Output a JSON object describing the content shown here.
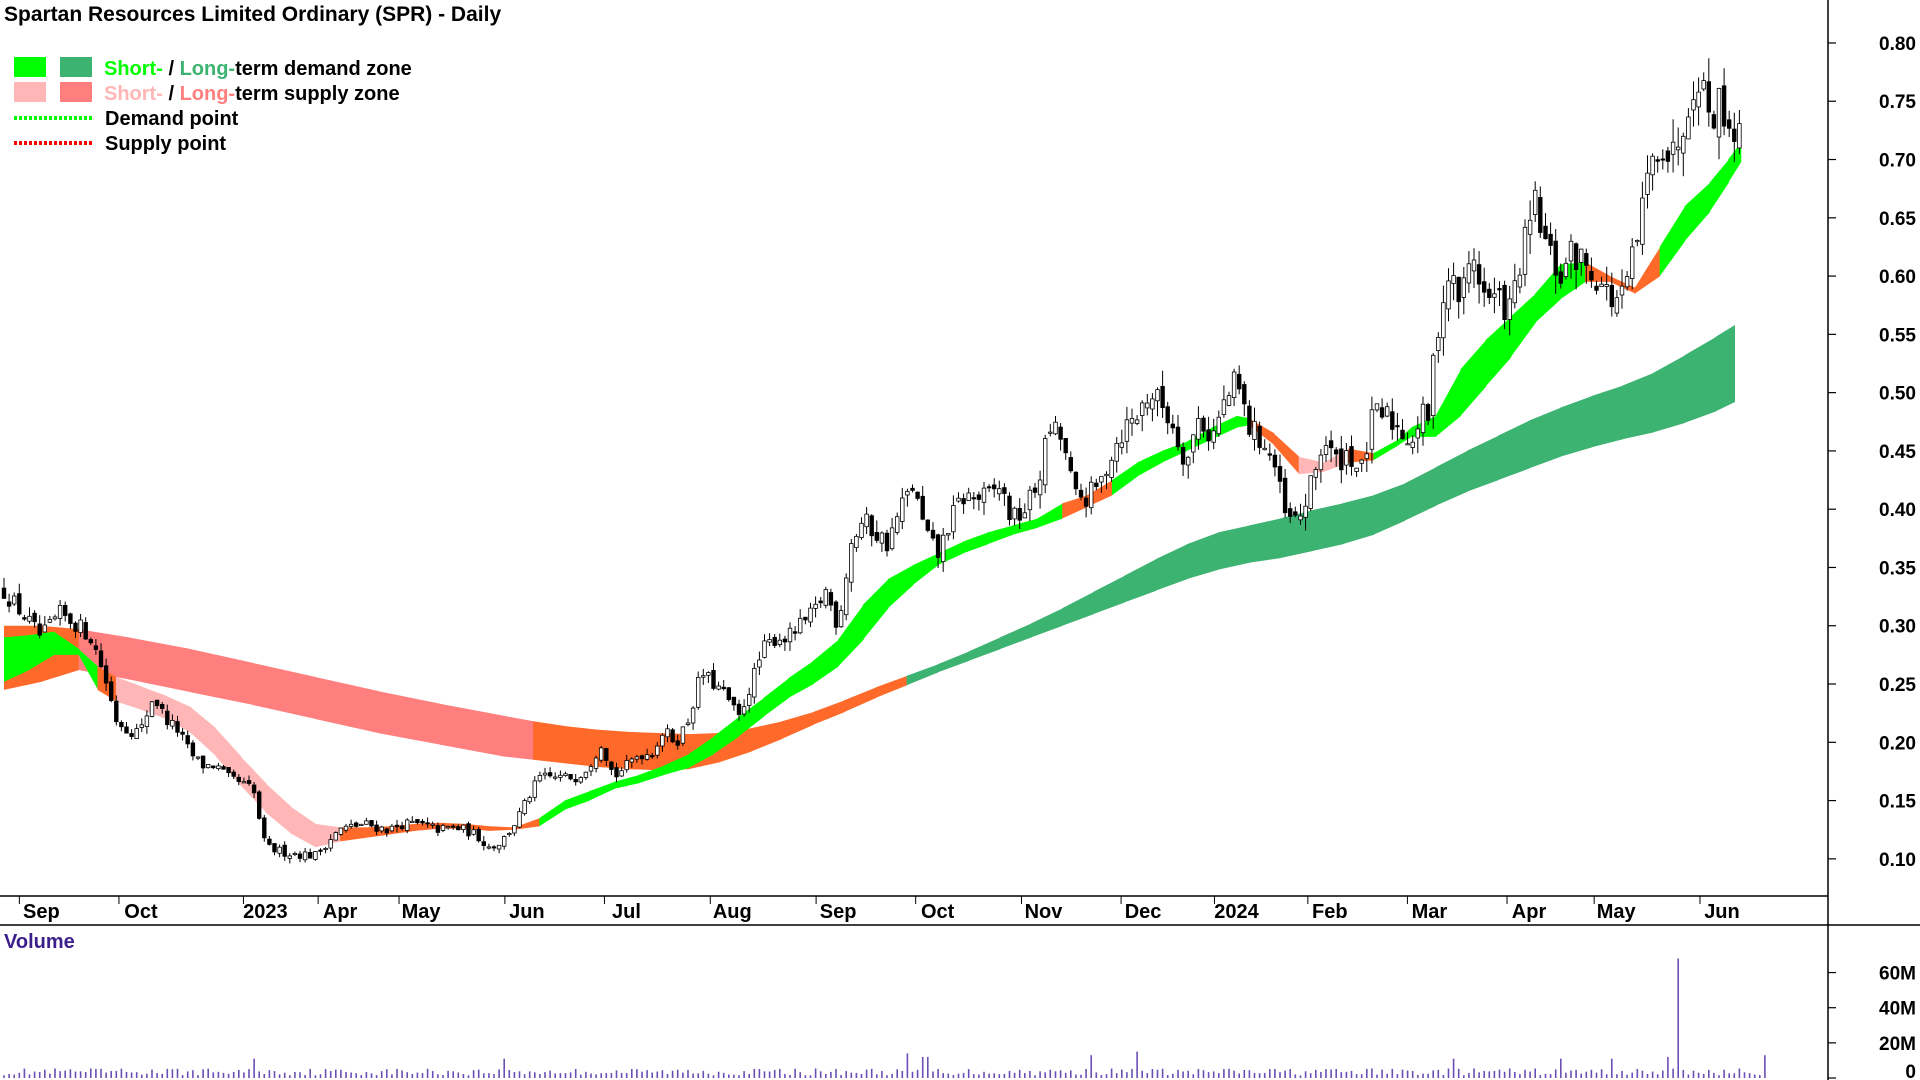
{
  "chart_data": {
    "type": "candlestick",
    "title": "Spartan Resources Limited Ordinary (SPR) - Daily",
    "legend": {
      "placement": "top-left",
      "items": [
        {
          "kind": "zone",
          "swatch_colors": [
            "#00ff00",
            "#3cb371"
          ],
          "prefix": "Short-",
          "prefix_color": "#00ff00",
          "sep": " / ",
          "mid": "Long-",
          "mid_color": "#3cb371",
          "rest": "term demand zone"
        },
        {
          "kind": "zone",
          "swatch_colors": [
            "#ffb6b6",
            "#ff7f7f"
          ],
          "prefix": "Short-",
          "prefix_color": "#ffb6b6",
          "sep": " / ",
          "mid": "Long-",
          "mid_color": "#ff7f7f",
          "rest": "term supply zone"
        },
        {
          "kind": "point",
          "color": "#00ff00",
          "label": "Demand point"
        },
        {
          "kind": "point",
          "color": "#ff0000",
          "label": "Supply point"
        }
      ]
    },
    "price_axis": {
      "ylim": [
        0.075,
        0.83
      ],
      "ticks": [
        "0.10",
        "0.15",
        "0.20",
        "0.25",
        "0.30",
        "0.35",
        "0.40",
        "0.45",
        "0.50",
        "0.55",
        "0.60",
        "0.65",
        "0.70",
        "0.75",
        "0.80"
      ],
      "position": "right"
    },
    "x_axis": {
      "range": [
        0,
        285
      ],
      "labels": [
        {
          "label": "Sep",
          "pos": 6
        },
        {
          "label": "Oct",
          "pos": 22
        },
        {
          "label": "2023",
          "pos": 42
        },
        {
          "label": "Apr",
          "pos": 54
        },
        {
          "label": "May",
          "pos": 67
        },
        {
          "label": "Jun",
          "pos": 84
        },
        {
          "label": "Jul",
          "pos": 100
        },
        {
          "label": "Aug",
          "pos": 117
        },
        {
          "label": "Sep",
          "pos": 134
        },
        {
          "label": "Oct",
          "pos": 150
        },
        {
          "label": "Nov",
          "pos": 167
        },
        {
          "label": "Dec",
          "pos": 183
        },
        {
          "label": "2024",
          "pos": 198
        },
        {
          "label": "Feb",
          "pos": 213
        },
        {
          "label": "Mar",
          "pos": 229
        },
        {
          "label": "Apr",
          "pos": 245
        },
        {
          "label": "May",
          "pos": 259
        },
        {
          "label": "Jun",
          "pos": 276
        }
      ]
    },
    "zone_colors": {
      "short_demand": "#00ff00",
      "long_demand": "#3cb371",
      "short_supply": "#ffb6b6",
      "long_supply": "#ff7f7f",
      "overlap": "#ff6a2a"
    },
    "long_term_zone": {
      "x": [
        0,
        6,
        12,
        20,
        30,
        40,
        50,
        60,
        70,
        80,
        85,
        90,
        95,
        100,
        105,
        110,
        115,
        120,
        125,
        130,
        135,
        140,
        145,
        150,
        155,
        160,
        165,
        170,
        175,
        180,
        185,
        190,
        195,
        200,
        205,
        210,
        215,
        220,
        225,
        230,
        235,
        240,
        245,
        250,
        255,
        260,
        265,
        270,
        275,
        278
      ],
      "top": [
        0.3,
        0.3,
        0.297,
        0.29,
        0.28,
        0.268,
        0.256,
        0.244,
        0.233,
        0.223,
        0.218,
        0.214,
        0.211,
        0.209,
        0.208,
        0.207,
        0.208,
        0.212,
        0.218,
        0.226,
        0.236,
        0.247,
        0.257,
        0.267,
        0.278,
        0.29,
        0.302,
        0.315,
        0.329,
        0.343,
        0.357,
        0.37,
        0.38,
        0.386,
        0.392,
        0.399,
        0.405,
        0.412,
        0.422,
        0.436,
        0.45,
        0.463,
        0.476,
        0.487,
        0.497,
        0.506,
        0.517,
        0.532,
        0.548,
        0.558
      ],
      "bottom": [
        0.245,
        0.252,
        0.262,
        0.254,
        0.243,
        0.232,
        0.22,
        0.208,
        0.198,
        0.188,
        0.185,
        0.182,
        0.179,
        0.177,
        0.176,
        0.177,
        0.183,
        0.192,
        0.203,
        0.215,
        0.226,
        0.238,
        0.249,
        0.26,
        0.27,
        0.28,
        0.29,
        0.3,
        0.31,
        0.32,
        0.33,
        0.34,
        0.348,
        0.354,
        0.358,
        0.364,
        0.37,
        0.378,
        0.39,
        0.403,
        0.415,
        0.425,
        0.435,
        0.445,
        0.453,
        0.46,
        0.466,
        0.474,
        0.484,
        0.492
      ],
      "colors": [
        "overlap",
        "overlap",
        "long_supply",
        "long_supply",
        "long_supply",
        "long_supply",
        "long_supply",
        "long_supply",
        "long_supply",
        "long_supply",
        "overlap",
        "overlap",
        "overlap",
        "overlap",
        "overlap",
        "overlap",
        "overlap",
        "overlap",
        "overlap",
        "overlap",
        "overlap",
        "overlap",
        "long_demand",
        "long_demand",
        "long_demand",
        "long_demand",
        "long_demand",
        "long_demand",
        "long_demand",
        "long_demand",
        "long_demand",
        "long_demand",
        "long_demand",
        "long_demand",
        "long_demand",
        "long_demand",
        "long_demand",
        "long_demand",
        "long_demand",
        "long_demand",
        "long_demand",
        "long_demand",
        "long_demand",
        "long_demand",
        "long_demand",
        "long_demand",
        "long_demand",
        "long_demand",
        "long_demand",
        "long_demand"
      ]
    },
    "short_term_zone": {
      "x": [
        0,
        4,
        8,
        12,
        15,
        18,
        22,
        26,
        30,
        34,
        38,
        42,
        46,
        50,
        54,
        58,
        62,
        66,
        70,
        74,
        78,
        82,
        86,
        90,
        94,
        98,
        102,
        106,
        110,
        114,
        118,
        122,
        126,
        130,
        134,
        138,
        142,
        146,
        150,
        154,
        158,
        162,
        166,
        170,
        174,
        178,
        182,
        186,
        190,
        194,
        198,
        200,
        204,
        208,
        212,
        216,
        220,
        224,
        226,
        230,
        234,
        238,
        242,
        246,
        250,
        254,
        258,
        262,
        266,
        270,
        274,
        277,
        279
      ],
      "top": [
        0.29,
        0.292,
        0.295,
        0.28,
        0.265,
        0.256,
        0.248,
        0.24,
        0.23,
        0.212,
        0.188,
        0.165,
        0.145,
        0.13,
        0.127,
        0.127,
        0.128,
        0.13,
        0.131,
        0.13,
        0.128,
        0.127,
        0.135,
        0.15,
        0.158,
        0.166,
        0.172,
        0.18,
        0.19,
        0.205,
        0.222,
        0.238,
        0.255,
        0.27,
        0.288,
        0.318,
        0.34,
        0.352,
        0.362,
        0.372,
        0.38,
        0.386,
        0.392,
        0.405,
        0.412,
        0.425,
        0.44,
        0.45,
        0.458,
        0.47,
        0.48,
        0.478,
        0.465,
        0.445,
        0.44,
        0.452,
        0.448,
        0.46,
        0.47,
        0.48,
        0.52,
        0.545,
        0.565,
        0.585,
        0.61,
        0.612,
        0.6,
        0.59,
        0.625,
        0.66,
        0.68,
        0.7,
        0.715
      ],
      "bottom": [
        0.252,
        0.262,
        0.275,
        0.275,
        0.245,
        0.235,
        0.228,
        0.22,
        0.208,
        0.188,
        0.163,
        0.14,
        0.122,
        0.11,
        0.115,
        0.118,
        0.121,
        0.124,
        0.126,
        0.126,
        0.124,
        0.125,
        0.128,
        0.142,
        0.15,
        0.16,
        0.165,
        0.172,
        0.178,
        0.19,
        0.205,
        0.222,
        0.238,
        0.25,
        0.265,
        0.288,
        0.315,
        0.335,
        0.352,
        0.362,
        0.37,
        0.378,
        0.384,
        0.392,
        0.402,
        0.412,
        0.428,
        0.44,
        0.45,
        0.46,
        0.47,
        0.472,
        0.455,
        0.43,
        0.432,
        0.44,
        0.442,
        0.455,
        0.462,
        0.462,
        0.48,
        0.505,
        0.53,
        0.56,
        0.58,
        0.595,
        0.595,
        0.585,
        0.6,
        0.63,
        0.655,
        0.68,
        0.698
      ],
      "colors": [
        "short_demand",
        "short_demand",
        "short_demand",
        "short_demand",
        "overlap",
        "short_supply",
        "short_supply",
        "short_supply",
        "short_supply",
        "short_supply",
        "short_supply",
        "short_supply",
        "short_supply",
        "short_supply",
        "overlap",
        "overlap",
        "overlap",
        "overlap",
        "overlap",
        "overlap",
        "overlap",
        "overlap",
        "short_demand",
        "short_demand",
        "short_demand",
        "short_demand",
        "short_demand",
        "short_demand",
        "short_demand",
        "short_demand",
        "short_demand",
        "short_demand",
        "short_demand",
        "short_demand",
        "short_demand",
        "short_demand",
        "short_demand",
        "short_demand",
        "short_demand",
        "short_demand",
        "short_demand",
        "short_demand",
        "short_demand",
        "overlap",
        "overlap",
        "short_demand",
        "short_demand",
        "short_demand",
        "short_demand",
        "short_demand",
        "short_demand",
        "overlap",
        "overlap",
        "short_supply",
        "short_supply",
        "overlap",
        "short_demand",
        "short_demand",
        "short_demand",
        "short_demand",
        "short_demand",
        "short_demand",
        "short_demand",
        "short_demand",
        "short_demand",
        "overlap",
        "overlap",
        "overlap",
        "short_demand",
        "short_demand",
        "short_demand",
        "short_demand",
        "short_demand"
      ]
    },
    "close_path": {
      "x": [
        0,
        3,
        6,
        9,
        12,
        14,
        16,
        18,
        20,
        22,
        24,
        26,
        28,
        30,
        32,
        34,
        36,
        38,
        40,
        42,
        44,
        46,
        48,
        50,
        52,
        54,
        56,
        58,
        60,
        62,
        64,
        66,
        68,
        70,
        72,
        74,
        76,
        78,
        80,
        82,
        84,
        86,
        88,
        90,
        92,
        94,
        96,
        98,
        100,
        102,
        104,
        106,
        108,
        110,
        112,
        114,
        116,
        118,
        120,
        122,
        124,
        126,
        128,
        130,
        132,
        134,
        136,
        138,
        140,
        142,
        144,
        146,
        148,
        150,
        152,
        154,
        156,
        158,
        160,
        162,
        164,
        166,
        168,
        170,
        172,
        174,
        176,
        178,
        180,
        182,
        184,
        186,
        188,
        190,
        192,
        194,
        196,
        198,
        200,
        202,
        204,
        206,
        208,
        210,
        212,
        214,
        216,
        218,
        220,
        222,
        224,
        226,
        228,
        229,
        230,
        232,
        234,
        236,
        238,
        240,
        242,
        244,
        246,
        248,
        250,
        252,
        254,
        256,
        258,
        260,
        262,
        264,
        266,
        268,
        270,
        272,
        274,
        276,
        278,
        279
      ],
      "close": [
        0.33,
        0.31,
        0.29,
        0.31,
        0.3,
        0.29,
        0.26,
        0.22,
        0.21,
        0.21,
        0.24,
        0.22,
        0.21,
        0.19,
        0.18,
        0.18,
        0.17,
        0.165,
        0.16,
        0.11,
        0.107,
        0.105,
        0.104,
        0.103,
        0.115,
        0.125,
        0.128,
        0.13,
        0.127,
        0.125,
        0.13,
        0.13,
        0.128,
        0.125,
        0.127,
        0.125,
        0.12,
        0.11,
        0.115,
        0.13,
        0.15,
        0.17,
        0.17,
        0.17,
        0.17,
        0.18,
        0.2,
        0.17,
        0.18,
        0.19,
        0.19,
        0.21,
        0.2,
        0.22,
        0.26,
        0.25,
        0.24,
        0.22,
        0.25,
        0.28,
        0.29,
        0.29,
        0.3,
        0.31,
        0.33,
        0.3,
        0.37,
        0.39,
        0.38,
        0.37,
        0.4,
        0.42,
        0.38,
        0.36,
        0.39,
        0.41,
        0.41,
        0.41,
        0.42,
        0.39,
        0.4,
        0.42,
        0.47,
        0.46,
        0.41,
        0.41,
        0.42,
        0.45,
        0.47,
        0.48,
        0.5,
        0.49,
        0.47,
        0.44,
        0.48,
        0.46,
        0.49,
        0.51,
        0.47,
        0.46,
        0.44,
        0.39,
        0.39,
        0.42,
        0.46,
        0.44,
        0.45,
        0.43,
        0.48,
        0.48,
        0.47,
        0.46,
        0.48,
        0.48,
        0.55,
        0.6,
        0.58,
        0.62,
        0.58,
        0.58,
        0.57,
        0.62,
        0.66,
        0.62,
        0.6,
        0.62,
        0.61,
        0.6,
        0.58,
        0.58,
        0.62,
        0.68,
        0.72,
        0.7,
        0.74,
        0.78,
        0.74,
        0.75,
        0.72,
        0.75
      ]
    },
    "volume": {
      "label": "Volume",
      "label_color": "#3d1f8c",
      "bar_color": "#6b4fb5",
      "ylim": [
        0,
        70
      ],
      "ticks": [
        "0",
        "20M",
        "40M",
        "60M"
      ],
      "notable_bars": [
        {
          "x": 40,
          "value": 11
        },
        {
          "x": 80,
          "value": 11
        },
        {
          "x": 145,
          "value": 14
        },
        {
          "x": 148,
          "value": 12
        },
        {
          "x": 175,
          "value": 13
        },
        {
          "x": 182,
          "value": 15
        },
        {
          "x": 233,
          "value": 11
        },
        {
          "x": 250,
          "value": 11
        },
        {
          "x": 258,
          "value": 11
        },
        {
          "x": 267,
          "value": 12
        },
        {
          "x": 269,
          "value": 68
        },
        {
          "x": 283,
          "value": 13
        }
      ]
    }
  }
}
